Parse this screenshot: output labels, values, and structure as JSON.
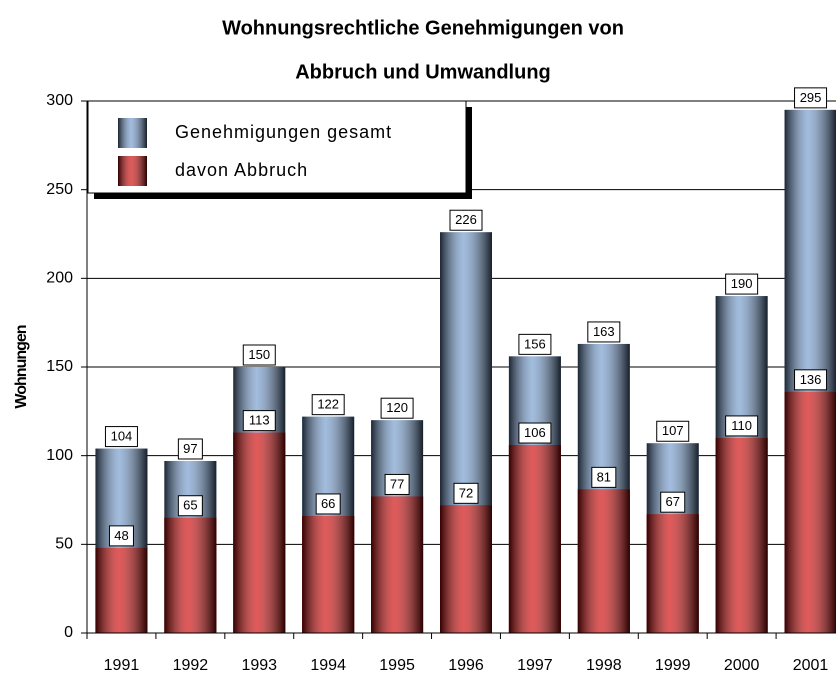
{
  "chart_data": {
    "type": "bar",
    "title": "Wohnungsrechtliche Genehmigungen von",
    "subtitle": "Abbruch und Umwandlung",
    "y_label": "Wohnungen",
    "categories": [
      "1991",
      "1992",
      "1993",
      "1994",
      "1995",
      "1996",
      "1997",
      "1998",
      "1999",
      "2000",
      "2001"
    ],
    "series": [
      {
        "name": "Genehmigungen gesamt",
        "color": "#6f98cc",
        "values": [
          104,
          97,
          150,
          122,
          120,
          226,
          156,
          163,
          107,
          190,
          295
        ]
      },
      {
        "name": "davon Abbruch",
        "color": "#d00000",
        "values": [
          48,
          65,
          113,
          66,
          77,
          72,
          106,
          81,
          67,
          110,
          136
        ]
      }
    ],
    "ylim": [
      0,
      300
    ],
    "yticks": [
      0,
      50,
      100,
      150,
      200,
      250,
      300
    ],
    "grid": true,
    "legend": "upper left"
  }
}
